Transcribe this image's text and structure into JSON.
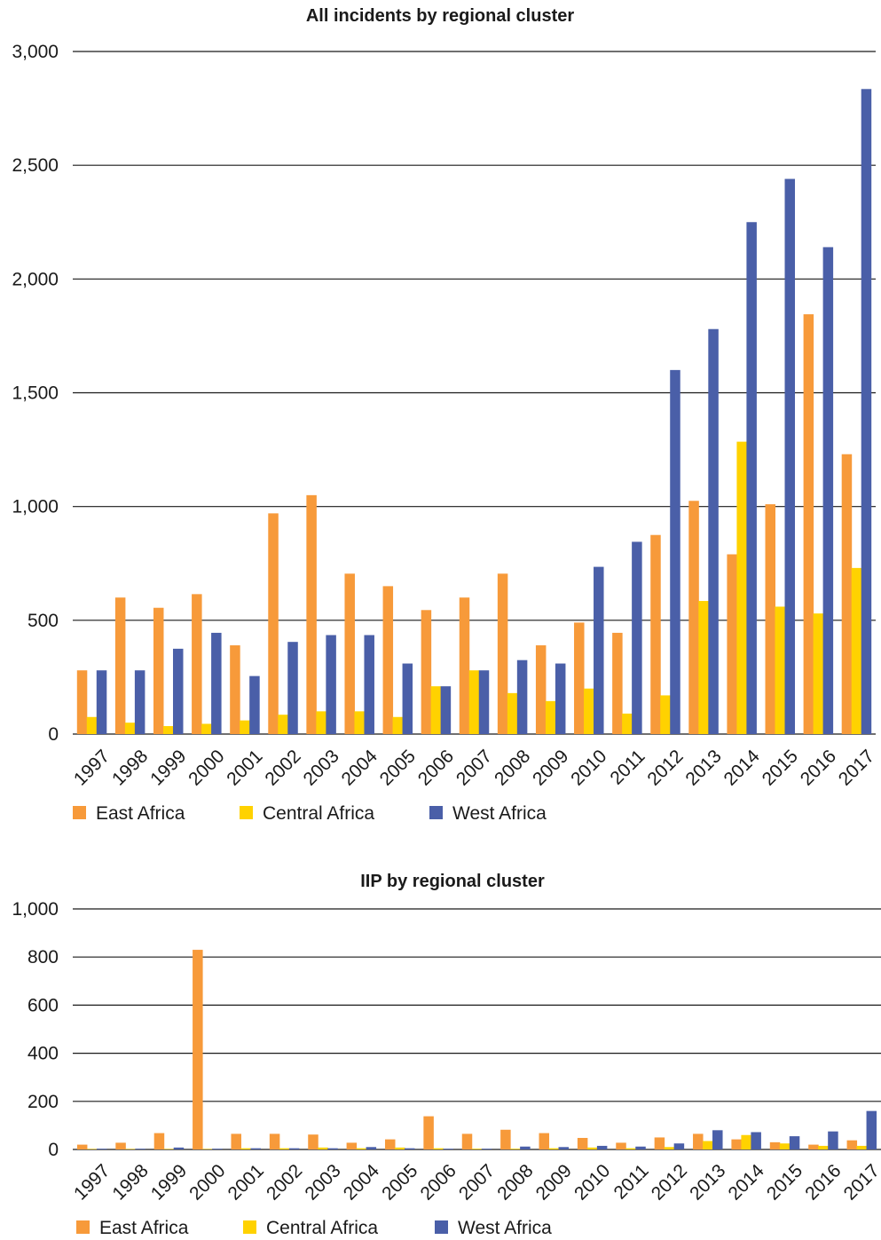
{
  "colors": {
    "east": "#F79A3A",
    "central": "#FFD200",
    "west": "#4A5FA8"
  },
  "chart_data": [
    {
      "type": "bar",
      "title": "All incidents by regional cluster",
      "categories": [
        "1997",
        "1998",
        "1999",
        "2000",
        "2001",
        "2002",
        "2003",
        "2004",
        "2005",
        "2006",
        "2007",
        "2008",
        "2009",
        "2010",
        "2011",
        "2012",
        "2013",
        "2014",
        "2015",
        "2016",
        "2017"
      ],
      "ylim": [
        0,
        3000
      ],
      "yticks": [
        0,
        500,
        1000,
        1500,
        2000,
        2500,
        3000
      ],
      "ytick_labels": [
        "0",
        "500",
        "1,000",
        "1,500",
        "2,000",
        "2,500",
        "3,000"
      ],
      "grid": true,
      "legend": "bottom",
      "series": [
        {
          "name": "East Africa",
          "color": "#F79A3A",
          "values": [
            280,
            600,
            555,
            615,
            390,
            970,
            1050,
            705,
            650,
            545,
            600,
            705,
            390,
            490,
            445,
            875,
            1025,
            790,
            1010,
            1845,
            1230
          ]
        },
        {
          "name": "Central Africa",
          "color": "#FFD200",
          "values": [
            75,
            50,
            35,
            45,
            60,
            85,
            100,
            100,
            75,
            210,
            280,
            180,
            145,
            200,
            90,
            170,
            585,
            1285,
            560,
            530,
            730
          ]
        },
        {
          "name": "West Africa",
          "color": "#4A5FA8",
          "values": [
            280,
            280,
            375,
            445,
            255,
            405,
            435,
            435,
            310,
            210,
            280,
            325,
            310,
            735,
            845,
            1600,
            1780,
            2250,
            2440,
            2140,
            2835
          ]
        }
      ]
    },
    {
      "type": "bar",
      "title": "IIP by regional cluster",
      "categories": [
        "1997",
        "1998",
        "1999",
        "2000",
        "2001",
        "2002",
        "2003",
        "2004",
        "2005",
        "2006",
        "2007",
        "2008",
        "2009",
        "2010",
        "2011",
        "2012",
        "2013",
        "2014",
        "2015",
        "2016",
        "2017"
      ],
      "ylim": [
        0,
        1000
      ],
      "yticks": [
        0,
        200,
        400,
        600,
        800,
        1000
      ],
      "ytick_labels": [
        "0",
        "200",
        "400",
        "600",
        "800",
        "1,000"
      ],
      "grid": true,
      "legend": "bottom",
      "series": [
        {
          "name": "East Africa",
          "color": "#F79A3A",
          "values": [
            20,
            28,
            68,
            830,
            65,
            65,
            62,
            28,
            42,
            138,
            65,
            82,
            68,
            48,
            28,
            50,
            65,
            42,
            30,
            20,
            38
          ]
        },
        {
          "name": "Central Africa",
          "color": "#FFD200",
          "values": [
            2,
            2,
            2,
            2,
            5,
            5,
            8,
            5,
            8,
            5,
            3,
            3,
            5,
            8,
            5,
            10,
            35,
            60,
            25,
            15,
            15
          ]
        },
        {
          "name": "West Africa",
          "color": "#4A5FA8",
          "values": [
            3,
            3,
            8,
            3,
            5,
            5,
            5,
            10,
            5,
            3,
            3,
            12,
            10,
            15,
            12,
            25,
            80,
            72,
            55,
            75,
            160
          ]
        }
      ]
    }
  ]
}
